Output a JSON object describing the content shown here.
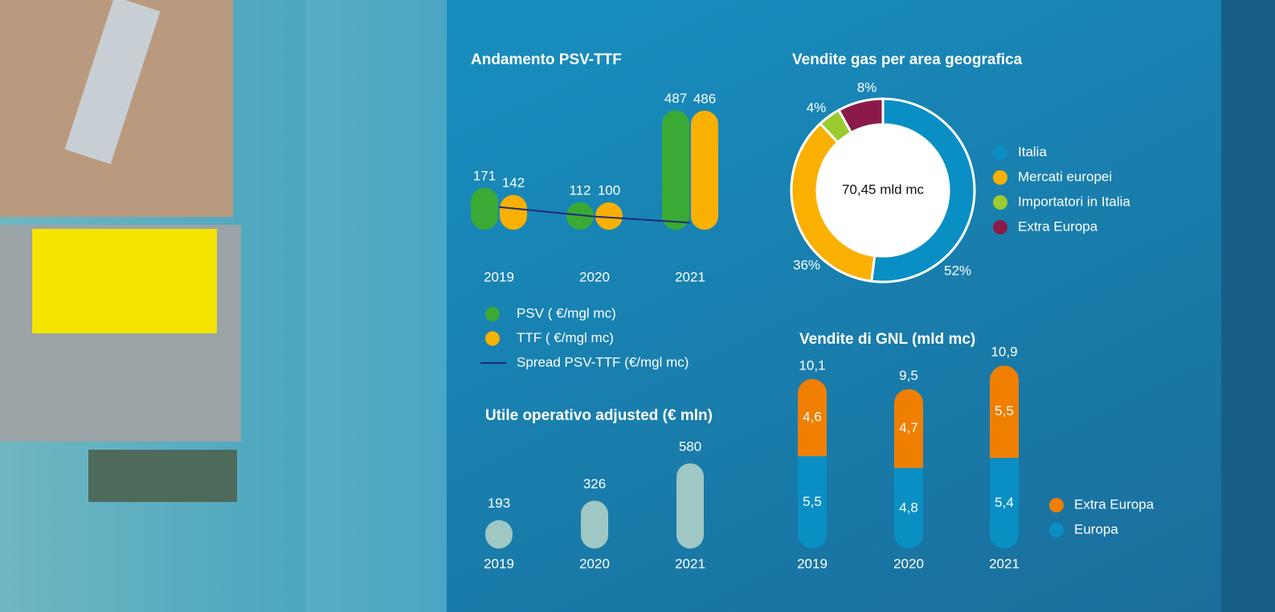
{
  "chart_data": [
    {
      "type": "bar",
      "title": "Andamento PSV-TTF",
      "categories": [
        "2019",
        "2020",
        "2021"
      ],
      "series": [
        {
          "name": "PSV ( €/mgl mc)",
          "color": "#3aaa35",
          "values": [
            171,
            112,
            487
          ]
        },
        {
          "name": "TTF ( €/mgl mc)",
          "color": "#f9b000",
          "values": [
            142,
            100,
            486
          ]
        },
        {
          "name": "Spread PSV-TTF (€/mgl mc)",
          "color": "#1f2a7a",
          "type": "line",
          "values": [
            29,
            12,
            1
          ]
        }
      ]
    },
    {
      "type": "donut",
      "title": "Vendite gas per area geografica",
      "center_label": "70,45 mld mc",
      "categories": [
        "Italia",
        "Mercati europei",
        "Importatori in Italia",
        "Extra Europa"
      ],
      "values": [
        52,
        36,
        4,
        8
      ],
      "value_labels": [
        "52%",
        "36%",
        "4%",
        "8%"
      ],
      "colors": [
        "#0a8fc4",
        "#f9b000",
        "#9ccb2e",
        "#8b1a4a"
      ]
    },
    {
      "type": "bar",
      "title": "Utile operativo adjusted (€ mln)",
      "categories": [
        "2019",
        "2020",
        "2021"
      ],
      "series": [
        {
          "name": "Utile operativo adjusted",
          "color": "#9fc7c4",
          "values": [
            193,
            326,
            580
          ]
        }
      ]
    },
    {
      "type": "stacked",
      "title": "Vendite di GNL (mld mc)",
      "categories": [
        "2019",
        "2020",
        "2021"
      ],
      "series": [
        {
          "name": "Europa",
          "color": "#0a8fc4",
          "values": [
            5.5,
            4.8,
            5.4
          ],
          "value_labels": [
            "5,5",
            "4,8",
            "5,4"
          ]
        },
        {
          "name": "Extra Europa",
          "color": "#f07f00",
          "values": [
            4.6,
            4.7,
            5.5
          ],
          "value_labels": [
            "4,6",
            "4,7",
            "5,5"
          ]
        }
      ],
      "totals": [
        10.1,
        9.5,
        10.9
      ],
      "total_labels": [
        "10,1",
        "9,5",
        "10,9"
      ]
    }
  ]
}
